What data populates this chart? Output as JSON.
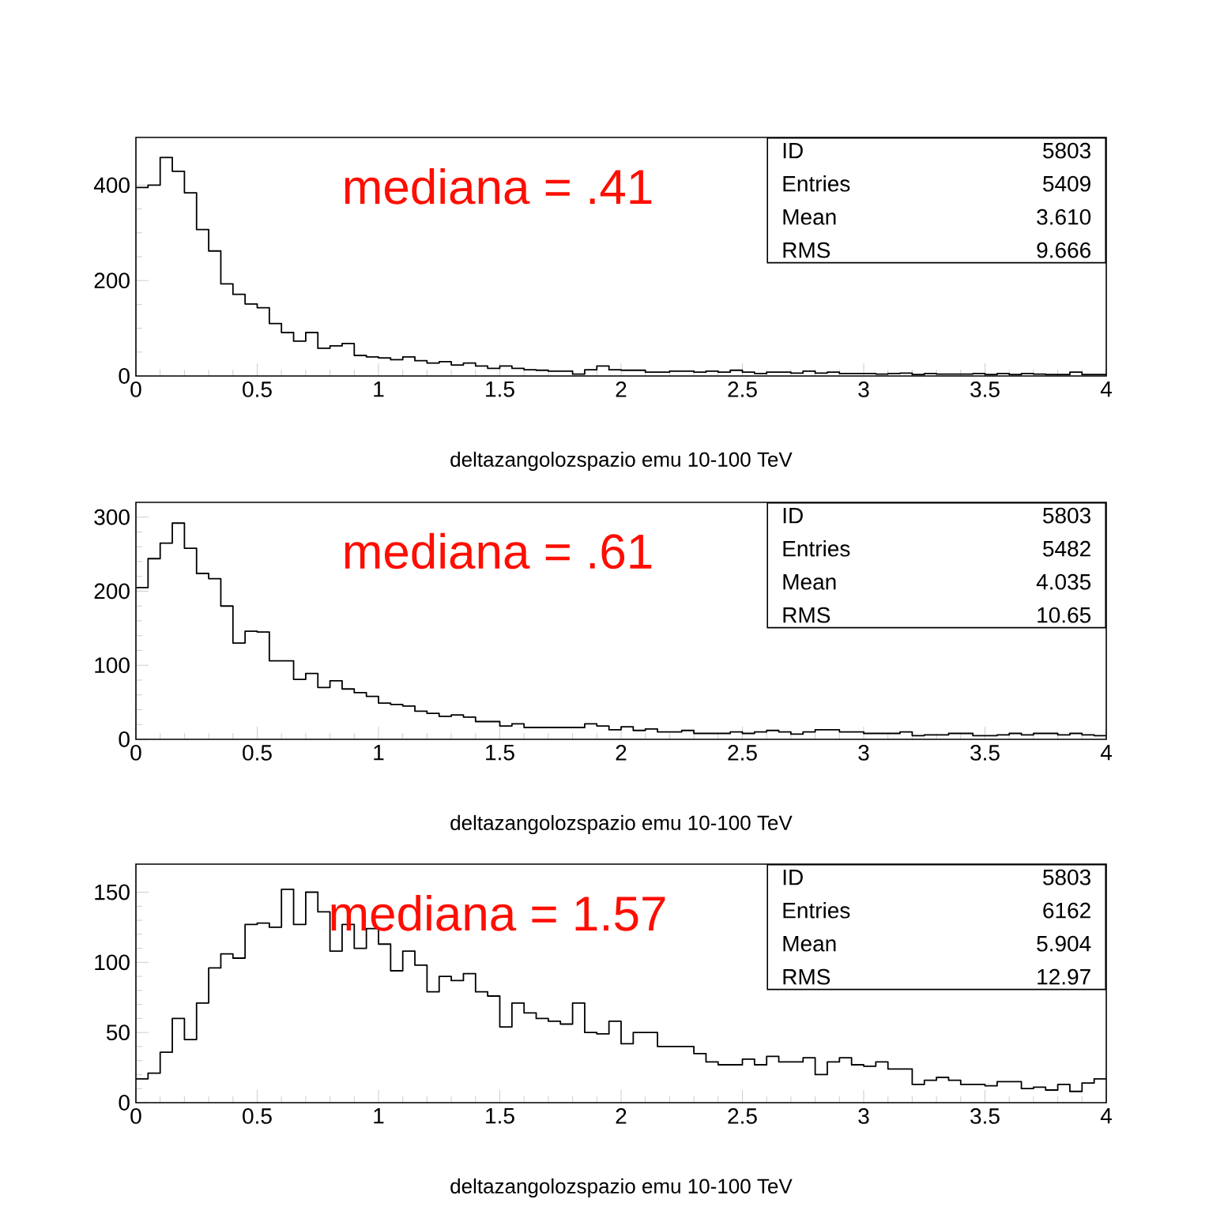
{
  "chart_data": [
    {
      "type": "histogram",
      "xlabel": "deltazangolozspazio emu 10-100 TeV",
      "bins": [
        0,
        0.05,
        0.1,
        0.15,
        0.2,
        0.25,
        0.3,
        0.35,
        0.4,
        0.45,
        0.5,
        0.55,
        0.6,
        0.65,
        0.7,
        0.75,
        0.8,
        0.85,
        0.9,
        0.95,
        1,
        1.05,
        1.1,
        1.15,
        1.2,
        1.25,
        1.3,
        1.35,
        1.4,
        1.45,
        1.5,
        1.55,
        1.6,
        1.65,
        1.7,
        1.75,
        1.8,
        1.85,
        1.9,
        1.95,
        2,
        2.05,
        2.1,
        2.15,
        2.2,
        2.25,
        2.3,
        2.35,
        2.4,
        2.45,
        2.5,
        2.55,
        2.6,
        2.65,
        2.7,
        2.75,
        2.8,
        2.85,
        2.9,
        2.95,
        3,
        3.05,
        3.1,
        3.15,
        3.2,
        3.25,
        3.3,
        3.35,
        3.4,
        3.45,
        3.5,
        3.55,
        3.6,
        3.65,
        3.7,
        3.75,
        3.8,
        3.85,
        3.9,
        3.95,
        4
      ],
      "values": [
        395,
        400,
        458,
        429,
        384,
        307,
        262,
        193,
        171,
        151,
        143,
        110,
        91,
        73,
        91,
        58,
        63,
        68,
        43,
        40,
        38,
        34,
        40,
        32,
        27,
        30,
        23,
        27,
        21,
        16,
        21,
        16,
        13,
        12,
        10,
        10,
        4,
        13,
        21,
        13,
        12,
        12,
        8,
        8,
        10,
        10,
        8,
        10,
        8,
        12,
        8,
        5,
        8,
        8,
        6,
        10,
        6,
        8,
        5,
        5,
        5,
        4,
        5,
        6,
        3,
        5,
        4,
        4,
        4,
        5,
        3,
        5,
        3,
        5,
        4,
        3,
        3,
        8,
        3,
        3
      ],
      "xlim": [
        0,
        4
      ],
      "xticks": [
        0,
        0.5,
        1,
        1.5,
        2,
        2.5,
        3,
        3.5,
        4
      ],
      "ylim": [
        0,
        500
      ],
      "yticks": [
        0,
        200,
        400
      ],
      "annotations": [
        "mediana = .41",
        "ID",
        "5803",
        "Entries",
        "5409",
        "Mean",
        "3.610",
        "RMS",
        "9.666"
      ]
    },
    {
      "type": "histogram",
      "xlabel": "deltazangolozspazio emu 10-100 TeV",
      "bins": [
        0,
        0.05,
        0.1,
        0.15,
        0.2,
        0.25,
        0.3,
        0.35,
        0.4,
        0.45,
        0.5,
        0.55,
        0.6,
        0.65,
        0.7,
        0.75,
        0.8,
        0.85,
        0.9,
        0.95,
        1,
        1.05,
        1.1,
        1.15,
        1.2,
        1.25,
        1.3,
        1.35,
        1.4,
        1.45,
        1.5,
        1.55,
        1.6,
        1.65,
        1.7,
        1.75,
        1.8,
        1.85,
        1.9,
        1.95,
        2,
        2.05,
        2.1,
        2.15,
        2.2,
        2.25,
        2.3,
        2.35,
        2.4,
        2.45,
        2.5,
        2.55,
        2.6,
        2.65,
        2.7,
        2.75,
        2.8,
        2.85,
        2.9,
        2.95,
        3,
        3.05,
        3.1,
        3.15,
        3.2,
        3.25,
        3.3,
        3.35,
        3.4,
        3.45,
        3.5,
        3.55,
        3.6,
        3.65,
        3.7,
        3.75,
        3.8,
        3.85,
        3.9,
        3.95,
        4
      ],
      "values": [
        205,
        244,
        265,
        292,
        258,
        224,
        217,
        180,
        130,
        146,
        145,
        106,
        106,
        81,
        89,
        70,
        79,
        68,
        63,
        58,
        49,
        47,
        45,
        38,
        35,
        31,
        33,
        30,
        24,
        24,
        18,
        21,
        16,
        16,
        16,
        16,
        16,
        21,
        18,
        13,
        17,
        12,
        14,
        10,
        10,
        12,
        8,
        8,
        8,
        10,
        8,
        10,
        12,
        10,
        7,
        10,
        13,
        13,
        10,
        10,
        8,
        8,
        8,
        10,
        5,
        6,
        6,
        8,
        8,
        5,
        5,
        6,
        8,
        6,
        8,
        8,
        6,
        8,
        6,
        5
      ],
      "xlim": [
        0,
        4
      ],
      "xticks": [
        0,
        0.5,
        1,
        1.5,
        2,
        2.5,
        3,
        3.5,
        4
      ],
      "ylim": [
        0,
        320
      ],
      "yticks": [
        0,
        100,
        200,
        300
      ],
      "annotations": [
        "mediana = .61",
        "ID",
        "5803",
        "Entries",
        "5482",
        "Mean",
        "4.035",
        "RMS",
        "10.65"
      ]
    },
    {
      "type": "histogram",
      "xlabel": "deltazangolozspazio emu 10-100 TeV",
      "bins": [
        0,
        0.05,
        0.1,
        0.15,
        0.2,
        0.25,
        0.3,
        0.35,
        0.4,
        0.45,
        0.5,
        0.55,
        0.6,
        0.65,
        0.7,
        0.75,
        0.8,
        0.85,
        0.9,
        0.95,
        1,
        1.05,
        1.1,
        1.15,
        1.2,
        1.25,
        1.3,
        1.35,
        1.4,
        1.45,
        1.5,
        1.55,
        1.6,
        1.65,
        1.7,
        1.75,
        1.8,
        1.85,
        1.9,
        1.95,
        2,
        2.05,
        2.1,
        2.15,
        2.2,
        2.25,
        2.3,
        2.35,
        2.4,
        2.45,
        2.5,
        2.55,
        2.6,
        2.65,
        2.7,
        2.75,
        2.8,
        2.85,
        2.9,
        2.95,
        3,
        3.05,
        3.1,
        3.15,
        3.2,
        3.25,
        3.3,
        3.35,
        3.4,
        3.45,
        3.5,
        3.55,
        3.6,
        3.65,
        3.7,
        3.75,
        3.8,
        3.85,
        3.9,
        3.95,
        4
      ],
      "values": [
        17,
        21,
        36,
        60,
        45,
        71,
        96,
        106,
        103,
        127,
        128,
        125,
        152,
        127,
        150,
        136,
        108,
        127,
        110,
        124,
        113,
        94,
        108,
        98,
        79,
        90,
        87,
        92,
        79,
        76,
        54,
        71,
        64,
        60,
        58,
        56,
        71,
        50,
        49,
        58,
        42,
        50,
        50,
        40,
        40,
        40,
        35,
        29,
        27,
        27,
        31,
        27,
        33,
        29,
        29,
        32,
        20,
        29,
        32,
        27,
        26,
        29,
        24,
        24,
        13,
        16,
        18,
        16,
        13,
        13,
        12,
        15,
        15,
        10,
        11,
        9,
        13,
        8,
        14,
        17
      ],
      "xlim": [
        0,
        4
      ],
      "xticks": [
        0,
        0.5,
        1,
        1.5,
        2,
        2.5,
        3,
        3.5,
        4
      ],
      "ylim": [
        0,
        170
      ],
      "yticks": [
        0,
        50,
        100,
        150
      ],
      "annotations": [
        "mediana = 1.57",
        "ID",
        "5803",
        "Entries",
        "6162",
        "Mean",
        "5.904",
        "RMS",
        "12.97"
      ]
    }
  ]
}
